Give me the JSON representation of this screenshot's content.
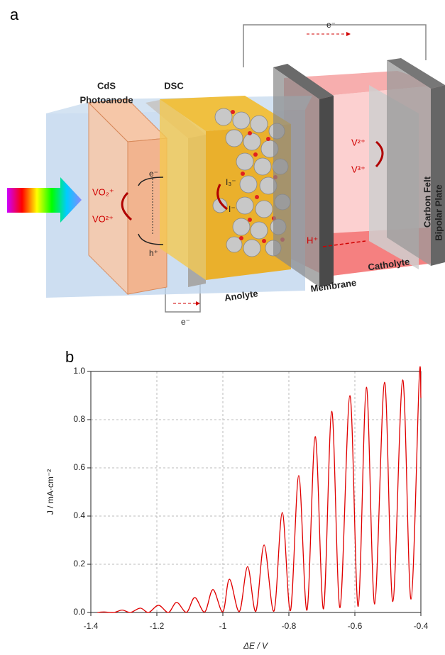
{
  "panel_a": {
    "label": "a",
    "labels": {
      "cds": "CdS",
      "photoanode": "Photoanode",
      "dsc": "DSC",
      "e_top": "e⁻",
      "e_bottom": "e⁻",
      "e_cell": "e⁻",
      "h_cell": "h⁺",
      "vo2_plus": "VO₂⁺",
      "vo_2plus": "VO²⁺",
      "i3": "I₃⁻",
      "i": "I⁻",
      "v2": "V²⁺",
      "v3": "V³⁺",
      "h_plus": "H⁺",
      "anolyte": "Anolyte",
      "membrane": "Membrane",
      "catholyte": "Catholyte",
      "carbon_felt": "Carbon Felt",
      "bipolar_plate": "Bipolar Plate"
    }
  },
  "chart_data": {
    "type": "line",
    "panel_label": "b",
    "x_label": "ΔE / V",
    "y_label": "J / mA·cm⁻²",
    "xlim": [
      -1.4,
      -0.4
    ],
    "ylim": [
      0,
      1.0
    ],
    "xticks": [
      -1.4,
      -1.2,
      -1.0,
      -0.8,
      -0.6,
      -0.4
    ],
    "yticks": [
      {
        "value": 0,
        "label": "0.0"
      },
      0.2,
      0.4,
      0.6,
      0.8,
      {
        "value": 1.0,
        "label": "1.0"
      }
    ],
    "grid": true,
    "series": [
      {
        "color": "#e00000",
        "x": [
          -1.38,
          -1.36,
          -1.33,
          -1.305,
          -1.28,
          -1.25,
          -1.225,
          -1.195,
          -1.165,
          -1.14,
          -1.11,
          -1.085,
          -1.055,
          -1.03,
          -1.0,
          -0.98,
          -0.95,
          -0.925,
          -0.9,
          -0.875,
          -0.845,
          -0.82,
          -0.795,
          -0.77,
          -0.745,
          -0.72,
          -0.695,
          -0.67,
          -0.645,
          -0.615,
          -0.59,
          -0.565,
          -0.54,
          -0.51,
          -0.485,
          -0.455,
          -0.43,
          -0.405,
          -0.4
        ],
        "values": [
          0,
          0.002,
          0,
          0.01,
          0,
          0.018,
          0,
          0.03,
          0,
          0.042,
          0.001,
          0.062,
          0.002,
          0.095,
          0.003,
          0.138,
          0.004,
          0.19,
          0.005,
          0.28,
          0.006,
          0.415,
          0.008,
          0.568,
          0.01,
          0.73,
          0.015,
          0.835,
          0.02,
          0.9,
          0.025,
          0.935,
          0.035,
          0.955,
          0.045,
          0.965,
          0.055,
          0.972,
          0.89
        ]
      }
    ]
  }
}
